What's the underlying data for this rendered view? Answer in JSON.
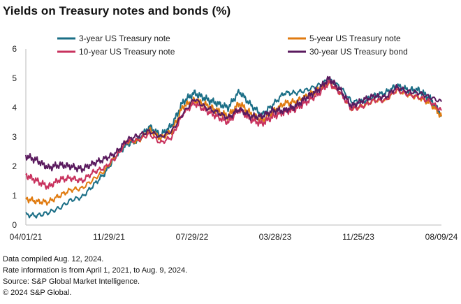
{
  "title": "Yields on Treasury notes and bonds (%)",
  "notes": [
    "Data compiled Aug. 12, 2024.",
    "Rate information is from April 1, 2021, to Aug. 9, 2024.",
    "Source: S&P Global Market Intelligence.",
    "© 2024 S&P Global."
  ],
  "chart_data": {
    "type": "line",
    "title": "Yields on Treasury notes and bonds (%)",
    "xlabel": "",
    "ylabel": "",
    "x_tick_labels": [
      "04/01/21",
      "11/29/21",
      "07/29/22",
      "03/28/23",
      "11/25/23",
      "08/09/24"
    ],
    "ylim": [
      0,
      6
    ],
    "y_ticks": [
      0,
      1,
      2,
      3,
      4,
      5,
      6
    ],
    "grid": false,
    "legend_position": "top",
    "x": [
      "2021-04",
      "2021-06",
      "2021-08",
      "2021-10",
      "2021-11",
      "2021-12",
      "2022-01",
      "2022-02",
      "2022-03",
      "2022-04",
      "2022-05",
      "2022-06",
      "2022-07",
      "2022-08",
      "2022-09",
      "2022-10",
      "2022-11",
      "2022-12",
      "2023-01",
      "2023-02",
      "2023-03",
      "2023-04",
      "2023-05",
      "2023-06",
      "2023-07",
      "2023-08",
      "2023-09",
      "2023-10",
      "2023-11",
      "2023-12",
      "2024-01",
      "2024-02",
      "2024-03",
      "2024-04",
      "2024-05",
      "2024-06",
      "2024-07",
      "2024-08"
    ],
    "series": [
      {
        "name": "3-year US Treasury note",
        "color": "#1a6e86",
        "values": [
          0.35,
          0.32,
          0.42,
          0.58,
          0.85,
          0.95,
          1.35,
          1.75,
          2.35,
          2.75,
          2.9,
          3.35,
          3.05,
          3.4,
          4.2,
          4.5,
          4.3,
          4.15,
          4.0,
          4.55,
          4.1,
          3.75,
          4.1,
          4.5,
          4.5,
          4.6,
          4.75,
          4.95,
          4.7,
          4.2,
          4.2,
          4.4,
          4.5,
          4.75,
          4.6,
          4.6,
          4.3,
          3.75
        ]
      },
      {
        "name": "5-year US Treasury note",
        "color": "#e07b10",
        "values": [
          0.9,
          0.8,
          0.78,
          1.0,
          1.2,
          1.25,
          1.55,
          1.85,
          2.35,
          2.85,
          2.85,
          3.25,
          2.95,
          3.2,
          4.05,
          4.25,
          4.1,
          3.9,
          3.7,
          4.15,
          3.8,
          3.55,
          3.85,
          4.15,
          4.2,
          4.4,
          4.6,
          4.85,
          4.5,
          3.95,
          4.05,
          4.25,
          4.25,
          4.6,
          4.45,
          4.35,
          4.15,
          3.7
        ]
      },
      {
        "name": "10-year US Treasury note",
        "color": "#c8325e",
        "values": [
          1.7,
          1.5,
          1.3,
          1.55,
          1.6,
          1.5,
          1.8,
          1.95,
          2.3,
          2.85,
          2.9,
          3.1,
          2.8,
          3.0,
          3.8,
          4.15,
          3.9,
          3.7,
          3.5,
          3.95,
          3.6,
          3.45,
          3.7,
          3.85,
          3.95,
          4.2,
          4.45,
          4.85,
          4.5,
          3.95,
          4.05,
          4.25,
          4.25,
          4.6,
          4.45,
          4.35,
          4.2,
          3.9
        ]
      },
      {
        "name": "30-year US Treasury bond",
        "color": "#5a1a5e",
        "values": [
          2.35,
          2.2,
          1.95,
          2.05,
          2.0,
          1.9,
          2.1,
          2.25,
          2.45,
          2.9,
          3.05,
          3.2,
          3.0,
          3.2,
          3.8,
          4.3,
          4.0,
          3.85,
          3.65,
          3.95,
          3.7,
          3.7,
          3.9,
          3.9,
          4.05,
          4.35,
          4.6,
          5.0,
          4.6,
          4.05,
          4.25,
          4.4,
          4.35,
          4.7,
          4.55,
          4.5,
          4.35,
          4.2
        ]
      }
    ]
  }
}
